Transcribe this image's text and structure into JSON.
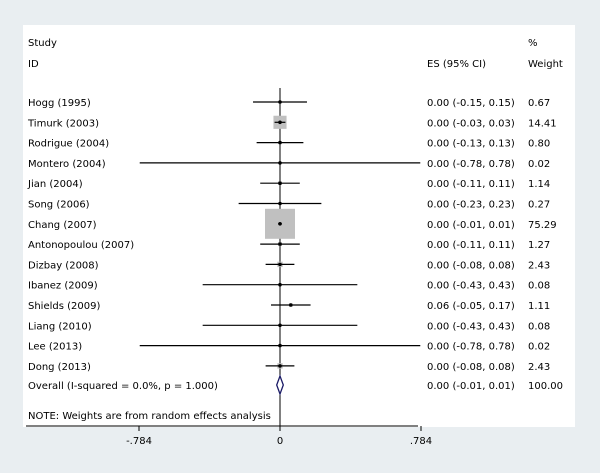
{
  "chart_data": {
    "type": "forest",
    "header": {
      "study_line1": "Study",
      "study_line2": "ID",
      "es_label": "ES (95% CI)",
      "weight_line1": "%",
      "weight_line2": "Weight"
    },
    "studies": [
      {
        "name": "Hogg (1995)",
        "es": 0.0,
        "lo": -0.15,
        "hi": 0.15,
        "es_text": "0.00 (-0.15, 0.15)",
        "weight": 0.67,
        "weight_text": "0.67"
      },
      {
        "name": "Timurk (2003)",
        "es": 0.0,
        "lo": -0.03,
        "hi": 0.03,
        "es_text": "0.00 (-0.03, 0.03)",
        "weight": 14.41,
        "weight_text": "14.41"
      },
      {
        "name": "Rodrigue (2004)",
        "es": 0.0,
        "lo": -0.13,
        "hi": 0.13,
        "es_text": "0.00 (-0.13, 0.13)",
        "weight": 0.8,
        "weight_text": "0.80"
      },
      {
        "name": "Montero (2004)",
        "es": 0.0,
        "lo": -0.78,
        "hi": 0.78,
        "es_text": "0.00 (-0.78, 0.78)",
        "weight": 0.02,
        "weight_text": "0.02"
      },
      {
        "name": "Jian (2004)",
        "es": 0.0,
        "lo": -0.11,
        "hi": 0.11,
        "es_text": "0.00 (-0.11, 0.11)",
        "weight": 1.14,
        "weight_text": "1.14"
      },
      {
        "name": "Song (2006)",
        "es": 0.0,
        "lo": -0.23,
        "hi": 0.23,
        "es_text": "0.00 (-0.23, 0.23)",
        "weight": 0.27,
        "weight_text": "0.27"
      },
      {
        "name": "Chang (2007)",
        "es": 0.0,
        "lo": -0.01,
        "hi": 0.01,
        "es_text": "0.00 (-0.01, 0.01)",
        "weight": 75.29,
        "weight_text": "75.29"
      },
      {
        "name": "Antonopoulou (2007)",
        "es": 0.0,
        "lo": -0.11,
        "hi": 0.11,
        "es_text": "0.00 (-0.11, 0.11)",
        "weight": 1.27,
        "weight_text": "1.27"
      },
      {
        "name": "Dizbay (2008)",
        "es": 0.0,
        "lo": -0.08,
        "hi": 0.08,
        "es_text": "0.00 (-0.08, 0.08)",
        "weight": 2.43,
        "weight_text": "2.43"
      },
      {
        "name": "Ibanez (2009)",
        "es": 0.0,
        "lo": -0.43,
        "hi": 0.43,
        "es_text": "0.00 (-0.43, 0.43)",
        "weight": 0.08,
        "weight_text": "0.08"
      },
      {
        "name": "Shields (2009)",
        "es": 0.06,
        "lo": -0.05,
        "hi": 0.17,
        "es_text": "0.06 (-0.05, 0.17)",
        "weight": 1.11,
        "weight_text": "1.11"
      },
      {
        "name": "Liang (2010)",
        "es": 0.0,
        "lo": -0.43,
        "hi": 0.43,
        "es_text": "0.00 (-0.43, 0.43)",
        "weight": 0.08,
        "weight_text": "0.08"
      },
      {
        "name": "Lee (2013)",
        "es": 0.0,
        "lo": -0.78,
        "hi": 0.78,
        "es_text": "0.00 (-0.78, 0.78)",
        "weight": 0.02,
        "weight_text": "0.02"
      },
      {
        "name": "Dong (2013)",
        "es": 0.0,
        "lo": -0.08,
        "hi": 0.08,
        "es_text": "0.00 (-0.08, 0.08)",
        "weight": 2.43,
        "weight_text": "2.43"
      }
    ],
    "overall": {
      "label": "Overall  (I-squared = 0.0%, p = 1.000)",
      "es": 0.0,
      "lo": -0.01,
      "hi": 0.01,
      "es_text": "0.00 (-0.01, 0.01)",
      "weight_text": "100.00"
    },
    "note": "NOTE: Weights are from random effects analysis",
    "xlim": [
      -0.784,
      0.784
    ],
    "ticks": [
      {
        "value": -0.784,
        "label": "-.784"
      },
      {
        "value": 0,
        "label": "0"
      },
      {
        "value": 0.784,
        "label": ".784"
      }
    ],
    "colors": {
      "background": "#e9eef1",
      "panel": "#ffffff",
      "weight_box": "#c0c0c0",
      "diamond": "#1a1a66"
    }
  }
}
